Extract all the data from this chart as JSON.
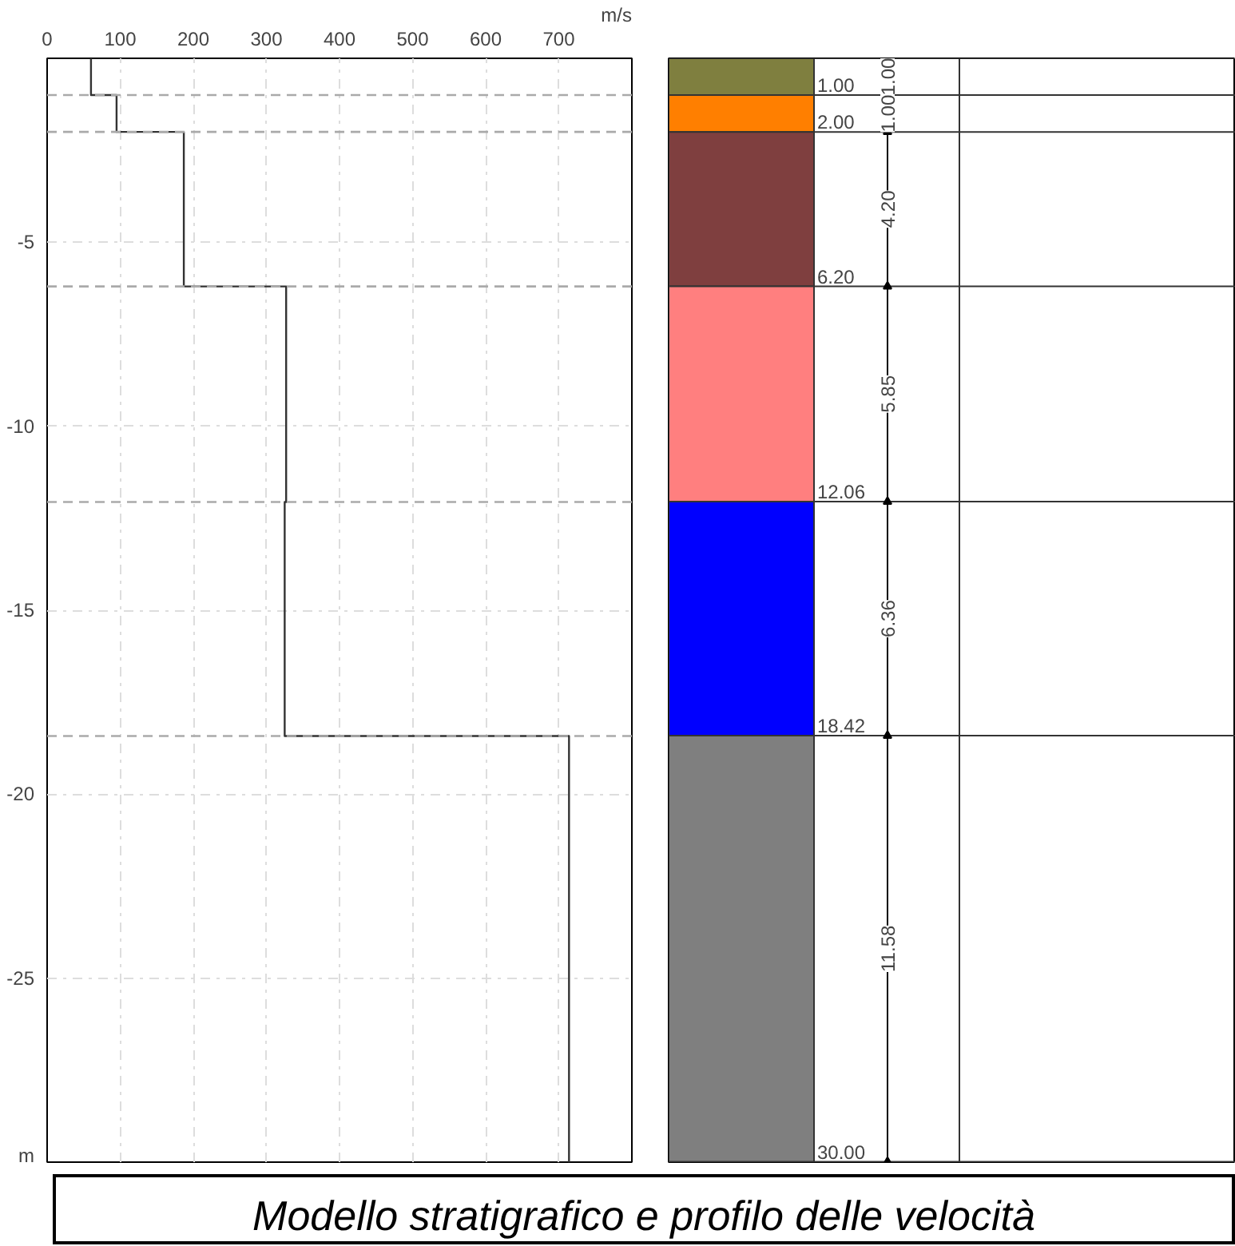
{
  "chart_data": [
    {
      "type": "line",
      "title": "Modello stratigrafico e profilo delle velocità",
      "xlabel": "m/s",
      "xlim": [
        0,
        800
      ],
      "ylim": [
        -30,
        0
      ],
      "xticks": [
        0,
        100,
        200,
        300,
        400,
        500,
        600,
        700
      ],
      "yticks": [
        -5,
        -10,
        -15,
        -20,
        -25,
        {
          "value": -30,
          "label": "m"
        }
      ],
      "grid": true,
      "series": [
        {
          "color": "#333333",
          "x": [
            60,
            60,
            95,
            95,
            187,
            187,
            327,
            327,
            325,
            325,
            714,
            714
          ],
          "values": [
            0,
            -1,
            -1,
            -2,
            -2,
            -6.2,
            -6.2,
            -12.06,
            -12.06,
            -18.42,
            -18.42,
            -30
          ]
        }
      ],
      "ref_lines": [
        {
          "axis": "y",
          "value": -1,
          "color": "#aaaaaa",
          "line_style": "dashed"
        },
        {
          "axis": "y",
          "value": -2,
          "color": "#aaaaaa",
          "line_style": "dashed"
        },
        {
          "axis": "y",
          "value": -6.2,
          "color": "#aaaaaa",
          "line_style": "dashed"
        },
        {
          "axis": "y",
          "value": -12.06,
          "color": "#aaaaaa",
          "line_style": "dashed"
        },
        {
          "axis": "y",
          "value": -18.42,
          "color": "#aaaaaa",
          "line_style": "dashed"
        }
      ]
    },
    {
      "type": "bar",
      "stacked": true,
      "categories": [
        null
      ],
      "ylim": [
        -30,
        0
      ],
      "tick_labels": false,
      "series": [
        {
          "color": "#7f7f3f",
          "values": [
            -1.0
          ]
        },
        {
          "color": "#ff7f00",
          "values": [
            -1.0
          ]
        },
        {
          "color": "#7f3f3f",
          "values": [
            -4.2
          ]
        },
        {
          "color": "#ff7f7f",
          "values": [
            -5.85
          ]
        },
        {
          "color": "#0000ff",
          "values": [
            -6.36
          ]
        },
        {
          "color": "#7f7f7f",
          "values": [
            -11.58
          ]
        }
      ],
      "annotations": [
        "1.00",
        "2.00",
        "6.20",
        "12.06",
        "18.42",
        "30.00",
        "1.00",
        "1.00",
        "4.20",
        "5.85",
        "6.36",
        "11.58"
      ]
    }
  ]
}
